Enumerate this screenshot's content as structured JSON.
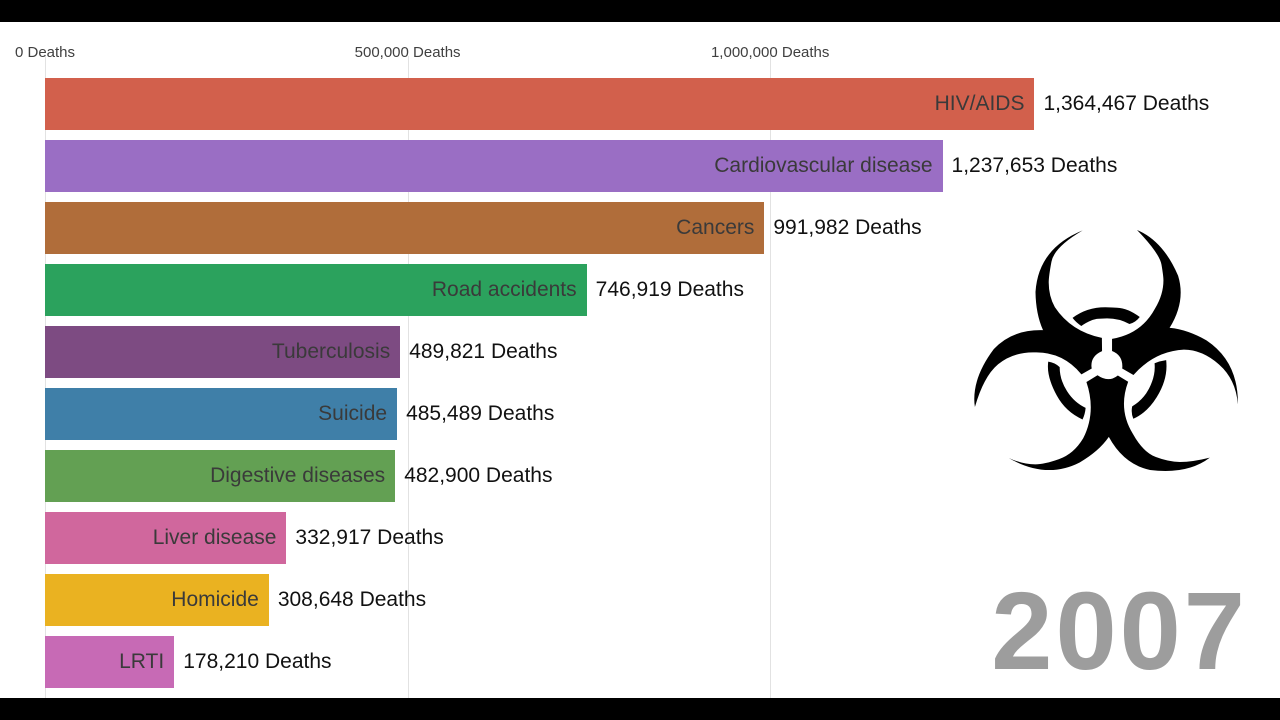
{
  "chart_data": {
    "type": "bar",
    "orientation": "horizontal",
    "title": "",
    "unit": "Deaths",
    "xlim": [
      0,
      1703000
    ],
    "grid": "vertical",
    "legend": "none",
    "x_ticks": [
      {
        "value": 0,
        "label": "0 Deaths"
      },
      {
        "value": 500000,
        "label": "500,000 Deaths"
      },
      {
        "value": 1000000,
        "label": "1,000,000 Deaths"
      }
    ],
    "bars": [
      {
        "label": "HIV/AIDS",
        "value": 1364467,
        "value_label": "1,364,467 Deaths",
        "color": "#d2604c"
      },
      {
        "label": "Cardiovascular disease",
        "value": 1237653,
        "value_label": "1,237,653 Deaths",
        "color": "#9a6ec4"
      },
      {
        "label": "Cancers",
        "value": 991982,
        "value_label": "991,982 Deaths",
        "color": "#b06d3a"
      },
      {
        "label": "Road accidents",
        "value": 746919,
        "value_label": "746,919 Deaths",
        "color": "#2ba25d"
      },
      {
        "label": "Tuberculosis",
        "value": 489821,
        "value_label": "489,821 Deaths",
        "color": "#7d4b82"
      },
      {
        "label": "Suicide",
        "value": 485489,
        "value_label": "485,489 Deaths",
        "color": "#3f7fa8"
      },
      {
        "label": "Digestive diseases",
        "value": 482900,
        "value_label": "482,900 Deaths",
        "color": "#63a053"
      },
      {
        "label": "Liver disease",
        "value": 332917,
        "value_label": "332,917 Deaths",
        "color": "#d0679d"
      },
      {
        "label": "Homicide",
        "value": 308648,
        "value_label": "308,648 Deaths",
        "color": "#eab221"
      },
      {
        "label": "LRTI",
        "value": 178210,
        "value_label": "178,210 Deaths",
        "color": "#c76ab5"
      }
    ]
  },
  "watermark": {
    "year": "2007",
    "biohazard_glyph": "☣"
  }
}
